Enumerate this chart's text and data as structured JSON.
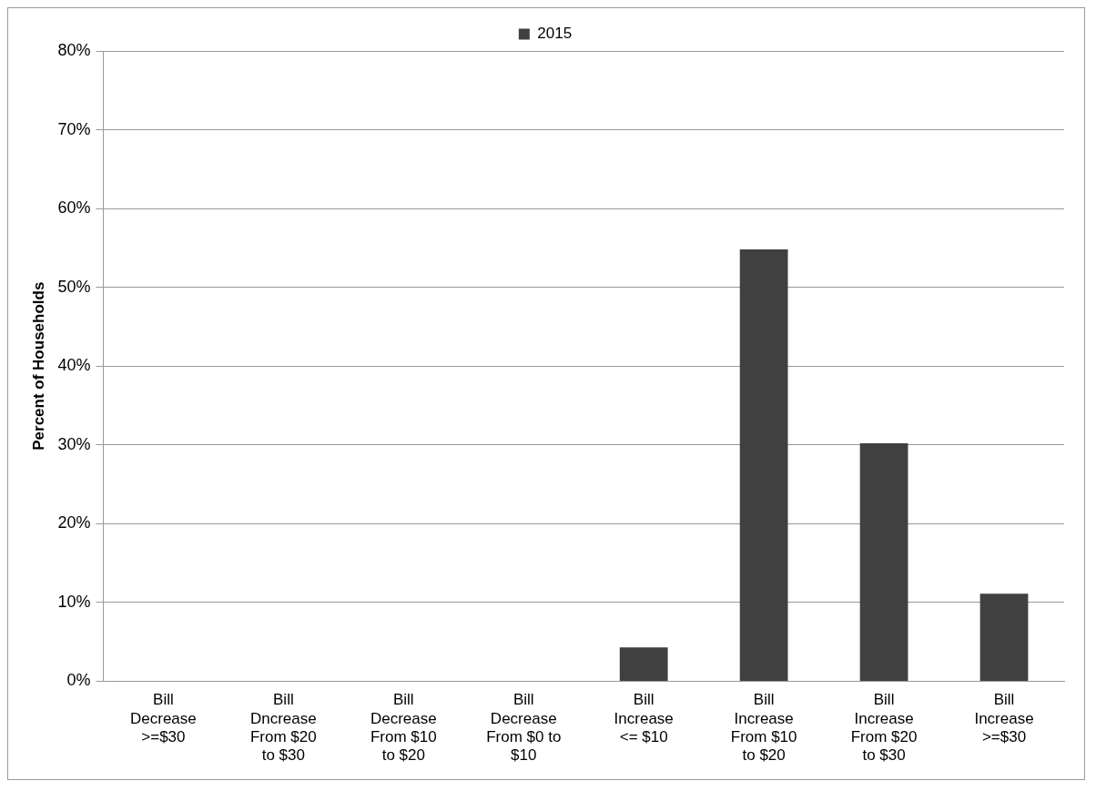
{
  "chart_data": {
    "type": "bar",
    "ylabel": "Percent of Households",
    "categories": [
      "Bill Decrease >=$30",
      "Bill Dncrease From $20 to $30",
      "Bill Decrease From $10 to $20",
      "Bill Decrease From $0 to $10",
      "Bill Increase <= $10",
      "Bill Increase From $10 to $20",
      "Bill Increase From $20 to $30",
      "Bill Increase >=$30"
    ],
    "series": [
      {
        "name": "2015",
        "color": "#404040",
        "values": [
          0,
          0,
          0,
          0,
          4.3,
          54.8,
          30.2,
          11.1
        ]
      }
    ],
    "ylim": [
      0,
      80
    ],
    "yticks": [
      {
        "value": 0,
        "label": "0%"
      },
      {
        "value": 10,
        "label": "10%"
      },
      {
        "value": 20,
        "label": "20%"
      },
      {
        "value": 30,
        "label": "30%"
      },
      {
        "value": 40,
        "label": "40%"
      },
      {
        "value": 50,
        "label": "50%"
      },
      {
        "value": 60,
        "label": "60%"
      },
      {
        "value": 70,
        "label": "70%"
      },
      {
        "value": 80,
        "label": "80%"
      }
    ],
    "grid": "y",
    "legend": "top"
  }
}
